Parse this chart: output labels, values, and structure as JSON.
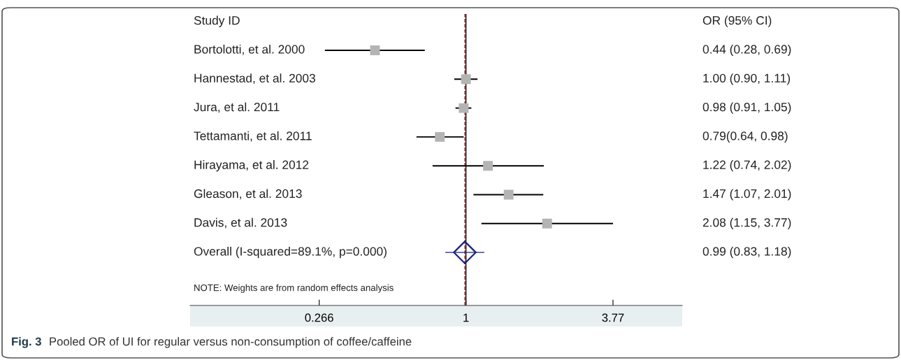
{
  "chart_data": {
    "type": "scatter",
    "orientation": "horizontal",
    "log": "x",
    "xlim": [
      0.083,
      7.04
    ],
    "xticks": [
      {
        "value": 0.266,
        "label": "0.266"
      },
      1,
      {
        "value": 3.77,
        "label": "3.77"
      }
    ],
    "tick_labels": "x",
    "grid": false,
    "legend": false,
    "categories": [
      "Bortolotti, et al. 2000",
      "Hannestad, et al. 2003",
      "Jura, et al. 2011",
      "Tettamanti, et al. 2011",
      "Hirayama, et al. 2012",
      "Gleason, et al. 2013",
      "Davis, et al. 2013",
      "Overall (I-squared=89.1%, p=0.000)"
    ],
    "series": [
      {
        "type": "scatter",
        "marker": "square",
        "color": "#b4b4b4",
        "values": [
          0.44,
          1.0,
          0.98,
          0.79,
          1.22,
          1.47,
          2.08,
          null
        ],
        "errors": [
          [
            0.28,
            0.69
          ],
          [
            0.9,
            1.11
          ],
          [
            0.91,
            1.05
          ],
          [
            0.64,
            0.98
          ],
          [
            0.74,
            2.02
          ],
          [
            1.07,
            2.01
          ],
          [
            1.15,
            3.77
          ],
          null
        ]
      },
      {
        "type": "scatter",
        "marker": "diamond",
        "color": "#1a237e",
        "values": [
          null,
          null,
          null,
          null,
          null,
          null,
          null,
          0.99
        ],
        "errors": [
          null,
          null,
          null,
          null,
          null,
          null,
          null,
          [
            0.83,
            1.18
          ]
        ]
      }
    ],
    "value_labels": [
      "0.44 (0.28, 0.69)",
      "1.00 (0.90, 1.11)",
      "0.98 (0.91, 1.05)",
      "0.79(0.64, 0.98)",
      "1.22 (0.74, 2.02)",
      "1.47 (1.07, 2.01)",
      "2.08 (1.15, 3.77)",
      "0.99 (0.83, 1.18)"
    ],
    "ref_lines": [
      {
        "axis": "x",
        "value": 1,
        "color": "#000000",
        "line_style": "solid"
      },
      {
        "axis": "x",
        "value": 0.99,
        "color": "#a0282d",
        "line_style": "dashed"
      }
    ],
    "annotations": [
      "Study ID",
      "OR (95% CI)",
      "NOTE: Weights are from random effects analysis",
      "Fig. 3",
      "Pooled OR of UI for regular versus non-consumption of coffee/caffeine"
    ]
  }
}
